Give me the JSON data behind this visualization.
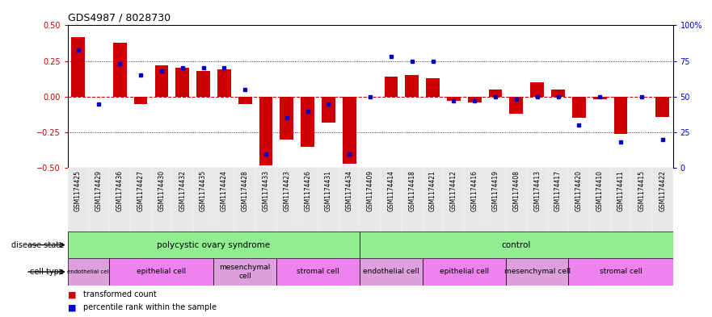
{
  "title": "GDS4987 / 8028730",
  "samples": [
    "GSM1174425",
    "GSM1174429",
    "GSM1174436",
    "GSM1174427",
    "GSM1174430",
    "GSM1174432",
    "GSM1174435",
    "GSM1174424",
    "GSM1174428",
    "GSM1174433",
    "GSM1174423",
    "GSM1174426",
    "GSM1174431",
    "GSM1174434",
    "GSM1174409",
    "GSM1174414",
    "GSM1174418",
    "GSM1174421",
    "GSM1174412",
    "GSM1174416",
    "GSM1174419",
    "GSM1174408",
    "GSM1174413",
    "GSM1174417",
    "GSM1174420",
    "GSM1174410",
    "GSM1174411",
    "GSM1174415",
    "GSM1174422"
  ],
  "bar_values": [
    0.42,
    0.0,
    0.38,
    -0.05,
    0.22,
    0.2,
    0.18,
    0.19,
    -0.05,
    -0.48,
    -0.3,
    -0.35,
    -0.18,
    -0.47,
    0.0,
    0.14,
    0.15,
    0.13,
    -0.03,
    -0.04,
    0.05,
    -0.12,
    0.1,
    0.05,
    -0.15,
    -0.02,
    -0.26,
    0.0,
    -0.14
  ],
  "dot_values": [
    83,
    45,
    73,
    65,
    68,
    70,
    70,
    70,
    55,
    10,
    35,
    40,
    45,
    10,
    50,
    78,
    75,
    75,
    47,
    47,
    50,
    48,
    50,
    50,
    30,
    50,
    18,
    50,
    20
  ],
  "bar_color": "#cc0000",
  "dot_color": "#0000cc",
  "ylim": [
    -0.5,
    0.5
  ],
  "y2lim": [
    0,
    100
  ],
  "yticks": [
    -0.5,
    -0.25,
    0.0,
    0.25,
    0.5
  ],
  "y2ticks": [
    0,
    25,
    50,
    75,
    100
  ],
  "y2ticklabels": [
    "0",
    "25",
    "50",
    "75",
    "100%"
  ],
  "disease_state_labels": [
    "polycystic ovary syndrome",
    "control"
  ],
  "disease_state_color": "#90ee90",
  "pcos_cell_spans": [
    [
      0,
      1,
      "endothelial cell",
      "#dda0dd"
    ],
    [
      2,
      6,
      "epithelial cell",
      "#ee82ee"
    ],
    [
      7,
      9,
      "mesenchymal\ncell",
      "#dda0dd"
    ],
    [
      10,
      13,
      "stromal cell",
      "#ee82ee"
    ]
  ],
  "ctrl_cell_spans": [
    [
      14,
      16,
      "endothelial cell",
      "#dda0dd"
    ],
    [
      17,
      20,
      "epithelial cell",
      "#ee82ee"
    ],
    [
      21,
      23,
      "mesenchymal cell",
      "#dda0dd"
    ],
    [
      24,
      28,
      "stromal cell",
      "#ee82ee"
    ]
  ],
  "legend_bar_label": "transformed count",
  "legend_dot_label": "percentile rank within the sample",
  "bar_width": 0.65,
  "tick_label_fontsize": 5.5,
  "bar_color_left": "#cc0000",
  "axis_color_right": "#0000cc"
}
